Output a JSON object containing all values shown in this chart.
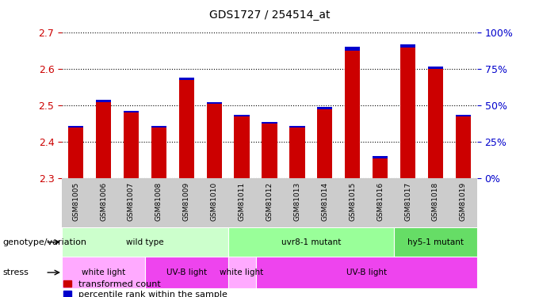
{
  "title": "GDS1727 / 254514_at",
  "samples": [
    "GSM81005",
    "GSM81006",
    "GSM81007",
    "GSM81008",
    "GSM81009",
    "GSM81010",
    "GSM81011",
    "GSM81012",
    "GSM81013",
    "GSM81014",
    "GSM81015",
    "GSM81016",
    "GSM81017",
    "GSM81018",
    "GSM81019"
  ],
  "red_values": [
    2.44,
    2.51,
    2.48,
    2.44,
    2.57,
    2.505,
    2.47,
    2.45,
    2.44,
    2.49,
    2.65,
    2.355,
    2.66,
    2.6,
    2.47
  ],
  "blue_values": [
    0.004,
    0.006,
    0.005,
    0.004,
    0.007,
    0.005,
    0.004,
    0.004,
    0.004,
    0.005,
    0.012,
    0.006,
    0.007,
    0.006,
    0.004
  ],
  "y_min": 2.3,
  "y_max": 2.7,
  "y_ticks": [
    2.3,
    2.4,
    2.5,
    2.6,
    2.7
  ],
  "right_y_ticks": [
    0,
    25,
    50,
    75,
    100
  ],
  "right_y_labels": [
    "0%",
    "25%",
    "50%",
    "75%",
    "100%"
  ],
  "bar_color": "#cc0000",
  "blue_color": "#0000cc",
  "tick_label_color": "#cc0000",
  "right_tick_color": "#0000cc",
  "grid_color": "#000000",
  "gray_bg": "#cccccc",
  "genotype_groups": [
    {
      "label": "wild type",
      "start": 0,
      "end": 6,
      "color": "#ccffcc"
    },
    {
      "label": "uvr8-1 mutant",
      "start": 6,
      "end": 12,
      "color": "#99ff99"
    },
    {
      "label": "hy5-1 mutant",
      "start": 12,
      "end": 15,
      "color": "#66dd66"
    }
  ],
  "stress_groups": [
    {
      "label": "white light",
      "start": 0,
      "end": 3,
      "color": "#ffaaff"
    },
    {
      "label": "UV-B light",
      "start": 3,
      "end": 6,
      "color": "#ee44ee"
    },
    {
      "label": "white light",
      "start": 6,
      "end": 7,
      "color": "#ffaaff"
    },
    {
      "label": "UV-B light",
      "start": 7,
      "end": 15,
      "color": "#ee44ee"
    }
  ],
  "genotype_label": "genotype/variation",
  "stress_label": "stress",
  "legend_red": "transformed count",
  "legend_blue": "percentile rank within the sample",
  "bar_width": 0.55
}
